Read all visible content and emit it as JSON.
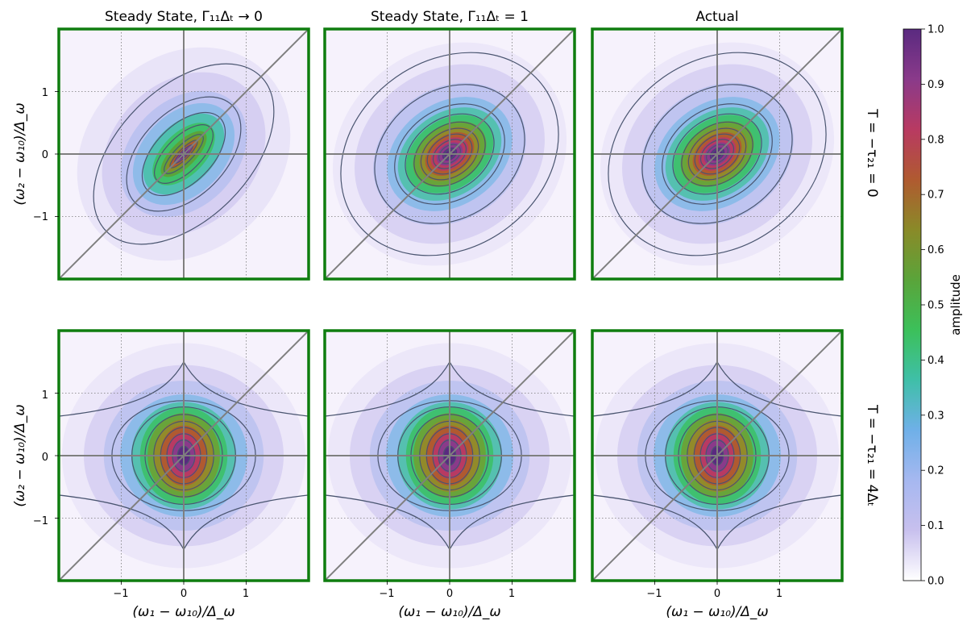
{
  "figure": {
    "colorbar": {
      "label": "amplitude",
      "range": [
        0.0,
        1.0
      ],
      "ticks": [
        "0.0",
        "0.1",
        "0.2",
        "0.3",
        "0.4",
        "0.5",
        "0.6",
        "0.7",
        "0.8",
        "0.9",
        "1.0"
      ],
      "colormap_stops": [
        "#ffffff",
        "#c8c0ee",
        "#a6b8f0",
        "#6fb0e8",
        "#3fbfa8",
        "#3cc05a",
        "#5aa43a",
        "#8a8a28",
        "#b05a30",
        "#b83a62",
        "#8a3a8a",
        "#5a2a80"
      ]
    },
    "frame_color": "#0f7d0f",
    "axis_line_color": "#7f7f7f",
    "contour_color": "#4a5570",
    "column_titles": [
      "Steady State, Γ₁₁Δₜ → 0",
      "Steady State, Γ₁₁Δₜ = 1",
      "Actual"
    ],
    "row_labels": [
      "T = −τ₂₁ = 0",
      "T = −τ₂₁ = 4Δₜ"
    ],
    "xlabel": "(ω₁ − ω₁₀)/Δ_ω",
    "ylabel": "(ω₂ − ω₁₀)/Δ_ω",
    "xticks": [
      "−1",
      "0",
      "1"
    ],
    "yticks": [
      "1",
      "0",
      "−1"
    ]
  },
  "chart_data": [
    {
      "type": "heatmap",
      "title": "Steady State, Γ₁₁Δₜ → 0",
      "row_label": "T = −τ₂₁ = 0",
      "xlim": [
        -2,
        2
      ],
      "ylim": [
        -2,
        2
      ],
      "peak": [
        0,
        0
      ],
      "shape": "narrow ridge along diagonal ω₂ = ω₁",
      "max_amplitude": 1.0
    },
    {
      "type": "heatmap",
      "title": "Steady State, Γ₁₁Δₜ = 1",
      "row_label": "T = −τ₂₁ = 0",
      "xlim": [
        -2,
        2
      ],
      "ylim": [
        -2,
        2
      ],
      "peak": [
        0,
        0
      ],
      "shape": "ellipse tilted along diagonal",
      "max_amplitude": 1.0
    },
    {
      "type": "heatmap",
      "title": "Actual",
      "row_label": "T = −τ₂₁ = 0",
      "xlim": [
        -2,
        2
      ],
      "ylim": [
        -2,
        2
      ],
      "peak": [
        0,
        0
      ],
      "shape": "ellipse tilted along diagonal",
      "max_amplitude": 1.0
    },
    {
      "type": "heatmap",
      "title": "",
      "row_label": "T = −τ₂₁ = 4Δₜ",
      "xlim": [
        -2,
        2
      ],
      "ylim": [
        -2,
        2
      ],
      "peak": [
        0,
        0
      ],
      "shape": "elongated along ω₂ axis",
      "max_amplitude": 1.0
    },
    {
      "type": "heatmap",
      "title": "",
      "row_label": "T = −τ₂₁ = 4Δₜ",
      "xlim": [
        -2,
        2
      ],
      "ylim": [
        -2,
        2
      ],
      "peak": [
        0,
        0
      ],
      "shape": "elongated along ω₂ axis",
      "max_amplitude": 1.0
    },
    {
      "type": "heatmap",
      "title": "",
      "row_label": "T = −τ₂₁ = 4Δₜ",
      "xlim": [
        -2,
        2
      ],
      "ylim": [
        -2,
        2
      ],
      "peak": [
        0,
        0
      ],
      "shape": "elongated along ω₂ axis",
      "max_amplitude": 1.0
    }
  ]
}
